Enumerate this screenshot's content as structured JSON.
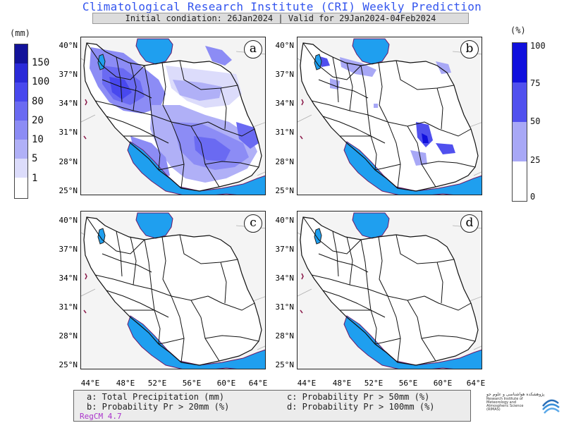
{
  "header": {
    "title": "Climatological Research Institute (CRI) Weekly Prediction",
    "subtitle": "Initial condiation: 26Jan2024 | Valid for 29Jan2024-04Feb2024"
  },
  "left_colorbar": {
    "unit": "(mm)",
    "labels": [
      "150",
      "100",
      "80",
      "20",
      "10",
      "5",
      "1"
    ],
    "colors": [
      "#12129a",
      "#2a2ad8",
      "#4848ee",
      "#6a6af2",
      "#8c8cf5",
      "#b0b0f7",
      "#dcdcfb",
      "#ffffff"
    ]
  },
  "right_colorbar": {
    "unit": "(%)",
    "labels": [
      "100",
      "75",
      "50",
      "25",
      "0"
    ],
    "colors": [
      "#1010dd",
      "#5050ee",
      "#a8a8f6",
      "#ffffff"
    ]
  },
  "panels": [
    {
      "label": "a"
    },
    {
      "label": "b"
    },
    {
      "label": "c"
    },
    {
      "label": "d"
    }
  ],
  "axes": {
    "lat_ticks": [
      "40°N",
      "37°N",
      "34°N",
      "31°N",
      "28°N",
      "25°N"
    ],
    "lon_ticks": [
      "44°E",
      "48°E",
      "52°E",
      "56°E",
      "60°E",
      "64°E"
    ]
  },
  "legend": {
    "a": "a: Total Precipitation (mm)",
    "b": "b: Probability Pr > 20mm (%)",
    "c": "c: Probability Pr > 50mm (%)",
    "d": "d: Probability Pr > 100mm (%)",
    "model": "RegCM 4.7"
  },
  "logo": {
    "persian": "پژوهشکده هواشناسی و علوم جو",
    "english": "Research Institute of Meteorology and Atmospheric Science (RIMAS)"
  },
  "colors": {
    "water": "#1f9fef",
    "land_outside": "#f4f4f4",
    "border": "#111111",
    "title": "#3355ee"
  }
}
